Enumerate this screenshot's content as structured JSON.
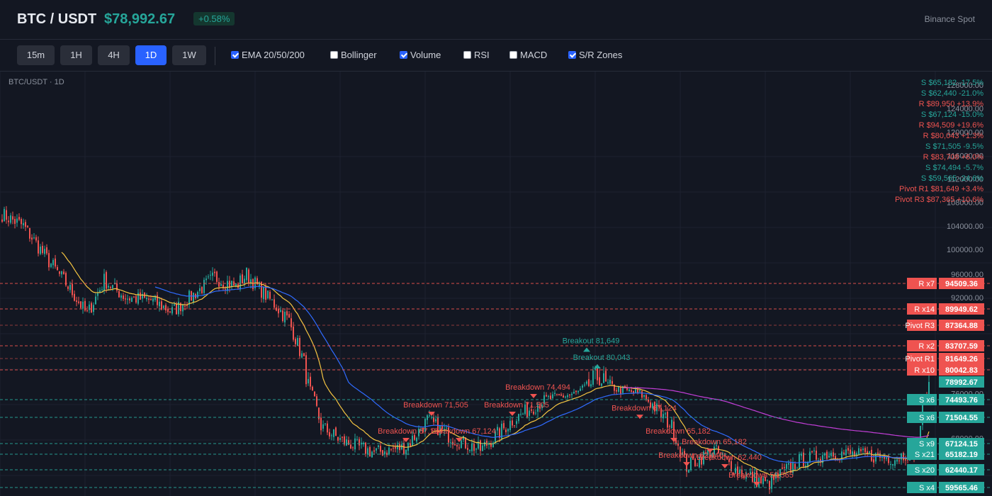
{
  "header": {
    "pair": "BTC / USDT",
    "price": "$78,992.67",
    "change": "+0.58%",
    "exchange": "Binance Spot"
  },
  "toolbar": {
    "timeframes": [
      {
        "label": "15m",
        "active": false
      },
      {
        "label": "1H",
        "active": false
      },
      {
        "label": "4H",
        "active": false
      },
      {
        "label": "1D",
        "active": true
      },
      {
        "label": "1W",
        "active": false
      }
    ],
    "indicators": [
      {
        "label": "EMA 20/50/200",
        "checked": true
      },
      {
        "label": "Bollinger",
        "checked": false
      },
      {
        "label": "Volume",
        "checked": true
      },
      {
        "label": "RSI",
        "checked": false
      },
      {
        "label": "MACD",
        "checked": false
      },
      {
        "label": "S/R Zones",
        "checked": true
      }
    ]
  },
  "chart_title": "BTC/USDT · 1D",
  "colors": {
    "up": "#26a69a",
    "down": "#ef5350",
    "ema20": "#f5c542",
    "ema50": "#2f6bff",
    "ema200": "#c13ed6",
    "grid": "#1e2230",
    "axis_text": "#8a909c"
  },
  "chart_data": {
    "type": "candlestick",
    "price_axis_ticks": [
      96000,
      92000,
      100000,
      104000,
      108000,
      112000,
      116000,
      120000,
      124000,
      128000
    ],
    "price_axis_tick_labels": [
      "96000.00",
      "92000.00",
      "100000.00",
      "104000.00",
      "108000.00",
      "112000.00",
      "116000.00",
      "120000.00",
      "124000.00",
      "128000.00",
      "76000.00",
      "68000.00"
    ],
    "price_axis_low_ticks": [
      76000,
      68000
    ],
    "close_anchors": [
      [
        0,
        106000
      ],
      [
        10,
        104000
      ],
      [
        20,
        99000
      ],
      [
        30,
        94500
      ],
      [
        40,
        89000
      ],
      [
        48,
        95000
      ],
      [
        58,
        92000
      ],
      [
        70,
        91500
      ],
      [
        80,
        89500
      ],
      [
        90,
        92500
      ],
      [
        100,
        95500
      ],
      [
        110,
        94000
      ],
      [
        115,
        96000
      ],
      [
        125,
        92000
      ],
      [
        135,
        88000
      ],
      [
        142,
        81000
      ],
      [
        150,
        70000
      ],
      [
        160,
        67500
      ],
      [
        175,
        65500
      ],
      [
        190,
        66500
      ],
      [
        200,
        71000
      ],
      [
        212,
        68000
      ],
      [
        225,
        66000
      ],
      [
        240,
        71000
      ],
      [
        255,
        74500
      ],
      [
        270,
        76000
      ],
      [
        280,
        79500
      ],
      [
        290,
        77000
      ],
      [
        300,
        76000
      ],
      [
        315,
        70000
      ],
      [
        322,
        63000
      ],
      [
        335,
        66000
      ],
      [
        345,
        62500
      ],
      [
        360,
        60000
      ],
      [
        375,
        64000
      ],
      [
        390,
        65500
      ],
      [
        405,
        65000
      ],
      [
        420,
        64500
      ],
      [
        430,
        66000
      ],
      [
        436,
        78992.67
      ]
    ],
    "volatility": 1300,
    "ema_periods": [
      20,
      50,
      200
    ],
    "sr_lines": [
      {
        "tag": "R x7",
        "price": 94509.36,
        "label": "94509.36",
        "kind": "R"
      },
      {
        "tag": "R x14",
        "price": 89949.62,
        "label": "89949.62",
        "kind": "R"
      },
      {
        "tag": "Pivot R3",
        "price": 87364.88,
        "label": "87364.88",
        "kind": "P"
      },
      {
        "tag": "R x2",
        "price": 83707.59,
        "label": "83707.59",
        "kind": "R"
      },
      {
        "tag": "Pivot R1",
        "price": 81649.26,
        "label": "81649.26",
        "kind": "P"
      },
      {
        "tag": "R x10",
        "price": 80042.83,
        "label": "80042.83",
        "kind": "R"
      },
      {
        "tag": "",
        "price": 78992.67,
        "label": "78992.67",
        "kind": "C"
      },
      {
        "tag": "S x6",
        "price": 74493.76,
        "label": "74493.76",
        "kind": "S"
      },
      {
        "tag": "S x6",
        "price": 71504.55,
        "label": "71504.55",
        "kind": "S"
      },
      {
        "tag": "S x9",
        "price": 67124.15,
        "label": "67124.15",
        "kind": "S"
      },
      {
        "tag": "S x21",
        "price": 65182.19,
        "label": "65182.19",
        "kind": "S"
      },
      {
        "tag": "S x20",
        "price": 62440.17,
        "label": "62440.17",
        "kind": "S"
      },
      {
        "tag": "S x4",
        "price": 59565.46,
        "label": "59565.46",
        "kind": "S"
      }
    ],
    "legend_list": [
      {
        "text": "S $65,182 -17.5%",
        "kind": "S"
      },
      {
        "text": "S $62,440 -21.0%",
        "kind": "S"
      },
      {
        "text": "R $89,950 +13.9%",
        "kind": "R"
      },
      {
        "text": "S $67,124 -15.0%",
        "kind": "S"
      },
      {
        "text": "R $94,509 +19.6%",
        "kind": "R"
      },
      {
        "text": "R $80,043 +1.3%",
        "kind": "R"
      },
      {
        "text": "S $71,505 -9.5%",
        "kind": "S"
      },
      {
        "text": "R $83,708 +6.0%",
        "kind": "R"
      },
      {
        "text": "S $74,494 -5.7%",
        "kind": "S"
      },
      {
        "text": "S $59,565 -24.6%",
        "kind": "S"
      },
      {
        "text": "Pivot R1 $81,649 +3.4%",
        "kind": "R"
      },
      {
        "text": "Pivot R3 $87,365 +10.6%",
        "kind": "R"
      }
    ],
    "annotations": [
      {
        "text": "Breakdown 71,505",
        "kind": "R",
        "i": 202,
        "price": 71505
      },
      {
        "text": "Breakdown 74,494",
        "kind": "R",
        "i": 250,
        "price": 74494
      },
      {
        "text": "Breakdown 71,505",
        "kind": "R",
        "i": 240,
        "price": 71505
      },
      {
        "text": "Breakdown 67,124",
        "kind": "R",
        "i": 215,
        "price": 67124
      },
      {
        "text": "Breakdown 67,124",
        "kind": "R",
        "i": 190,
        "price": 67124
      },
      {
        "text": "Breakdown 67,124",
        "kind": "R",
        "i": 300,
        "price": 71000
      },
      {
        "text": "Breakout 80,043",
        "kind": "S",
        "i": 280,
        "price": 80043
      },
      {
        "text": "Breakout 81,649",
        "kind": "S",
        "i": 275,
        "price": 82500
      },
      {
        "text": "Breakdown 65,182",
        "kind": "R",
        "i": 316,
        "price": 67124
      },
      {
        "text": "Breakdown 65,182",
        "kind": "R",
        "i": 333,
        "price": 65182
      },
      {
        "text": "Breakdown 62,440",
        "kind": "R",
        "i": 322,
        "price": 62800
      },
      {
        "text": "Breakdown 62,440",
        "kind": "R",
        "i": 340,
        "price": 62440
      },
      {
        "text": "Breakdown 59,565",
        "kind": "R",
        "i": 355,
        "price": 59565
      }
    ]
  }
}
